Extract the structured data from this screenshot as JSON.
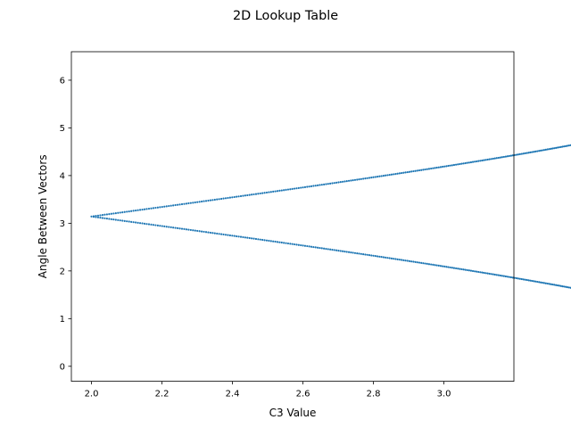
{
  "chart_data": {
    "type": "scatter",
    "title": "2D Lookup Table",
    "xlabel": "C3 Value",
    "ylabel": "Angle Between Vectors",
    "xlim": [
      1.943,
      3.1986
    ],
    "ylim": [
      -0.3142,
      6.5973
    ],
    "xticks": [
      2.0,
      2.2,
      2.4,
      2.6,
      2.8,
      3.0
    ],
    "xtick_labels": [
      "2.0",
      "2.2",
      "2.4",
      "2.6",
      "2.8",
      "3.0"
    ],
    "yticks": [
      0,
      1,
      2,
      3,
      4,
      5,
      6
    ],
    "ytick_labels": [
      "0",
      "1",
      "2",
      "3",
      "4",
      "5",
      "6"
    ],
    "grid": false,
    "series": [
      {
        "color": "#1f77b4",
        "marker": "point",
        "relation": "x = 2 + sqrt(2 + 2*cos(y))",
        "y_range": [
          0,
          6.2832
        ],
        "point_count": 1000
      }
    ]
  }
}
